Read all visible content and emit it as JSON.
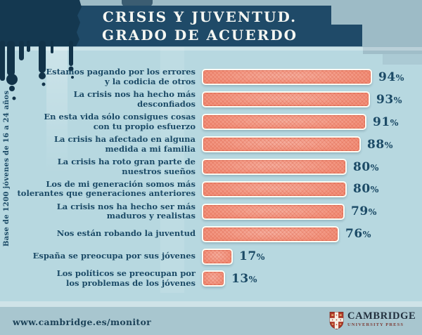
{
  "header": {
    "title_line1": "CRISIS Y JUVENTUD.",
    "title_line2": "GRADO DE ACUERDO"
  },
  "sidebar": {
    "note": "Base de 1200 jóvenes de 16 a 24 años"
  },
  "footer": {
    "url": "www.cambridge.es/monitor",
    "publisher_name": "CAMBRIDGE",
    "publisher_subtitle": "UNIVERSITY PRESS"
  },
  "colors": {
    "background": "#b7d8e0",
    "top_band": "#9dbbc6",
    "banner_navy": "#1f4a68",
    "ink_navy": "#143850",
    "text_navy": "#1b4a66",
    "bar_coral": "#f2917b",
    "bar_hatch": "#d8583e",
    "bar_border": "#fcfcf4",
    "footer_band": "#a8c6cf",
    "logo_red": "#b03a2a"
  },
  "chart_data": {
    "type": "bar",
    "orientation": "horizontal",
    "title": "CRISIS Y JUVENTUD. GRADO DE ACUERDO",
    "note": "Base de 1200 jóvenes de 16 a 24 años",
    "xlim": [
      0,
      100
    ],
    "value_suffix": "%",
    "categories": [
      "Estamos pagando por los errores\ny la codicia de otros",
      "La crisis nos ha hecho más\ndesconfiados",
      "En esta vida sólo consigues cosas\ncon tu propio esfuerzo",
      "La crisis ha afectado en alguna\nmedida a mi familia",
      "La crisis ha roto gran parte de\nnuestros sueños",
      "Los de mi generación somos más\ntolerantes que generaciones anteriores",
      "La crisis nos ha hecho ser más\nmaduros y realistas",
      "Nos están robando la juventud",
      "España se preocupa por sus jóvenes",
      "Los políticos se preocupan por\nlos problemas de los jóvenes"
    ],
    "values": [
      94,
      93,
      91,
      88,
      80,
      80,
      79,
      76,
      17,
      13
    ]
  }
}
